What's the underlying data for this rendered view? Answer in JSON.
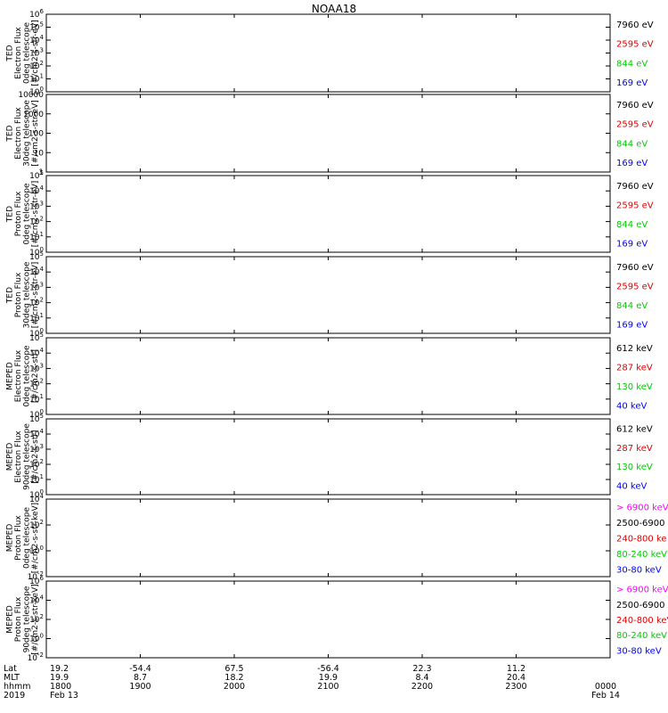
{
  "title": "NOAA18",
  "footer": {
    "row_labels": [
      "Lat",
      "MLT",
      "hhmm",
      "2019"
    ],
    "columns": [
      {
        "lat": "19.2",
        "mlt": "19.9",
        "hhmm": "1800",
        "date": "Feb 13"
      },
      {
        "lat": "-54.4",
        "mlt": "8.7",
        "hhmm": "1900",
        "date": ""
      },
      {
        "lat": "67.5",
        "mlt": "18.2",
        "hhmm": "2000",
        "date": ""
      },
      {
        "lat": "-56.4",
        "mlt": "19.9",
        "hhmm": "2100",
        "date": ""
      },
      {
        "lat": "22.3",
        "mlt": "8.4",
        "hhmm": "2200",
        "date": ""
      },
      {
        "lat": "11.2",
        "mlt": "20.4",
        "hhmm": "2300",
        "date": ""
      }
    ],
    "end": {
      "hhmm": "0000",
      "date": "Feb 14"
    }
  },
  "chart_data": [
    {
      "type": "scatter",
      "scale": "log",
      "ylim": [
        1,
        1000000
      ],
      "ylabel": [
        "TED",
        "Electron Flux",
        "0deg telescope",
        "[#/cm2-s-str-eV]"
      ],
      "ticks": [
        "10^0",
        "10^1",
        "10^2",
        "10^3",
        "10^4",
        "10^5",
        "10^6"
      ],
      "legend": [
        {
          "label": "7960 eV",
          "color": "#000000"
        },
        {
          "label": "2595 eV",
          "color": "#e00000"
        },
        {
          "label": "844 eV",
          "color": "#00cc00"
        },
        {
          "label": "169 eV",
          "color": "#0000ff"
        }
      ],
      "x": [
        "1800",
        "1900",
        "2000",
        "2100",
        "2200",
        "2300",
        "0000"
      ],
      "series": [
        {
          "color": "#000000",
          "values": []
        },
        {
          "color": "#e00000",
          "values": []
        },
        {
          "color": "#00cc00",
          "values": []
        },
        {
          "color": "#0000ff",
          "values": []
        }
      ]
    },
    {
      "type": "scatter",
      "scale": "log",
      "ylim": [
        1,
        10000
      ],
      "ylabel": [
        "TED",
        "Electron Flux",
        "30deg telescope",
        "[#/cm2-s-str-eV]"
      ],
      "ticks": [
        "1",
        "10",
        "100",
        "1000",
        "10000"
      ],
      "legend": [
        {
          "label": "7960 eV",
          "color": "#000000"
        },
        {
          "label": "2595 eV",
          "color": "#e00000"
        },
        {
          "label": "844 eV",
          "color": "#00cc00"
        },
        {
          "label": "169 eV",
          "color": "#0000ff"
        }
      ],
      "x": [
        "1800",
        "1900",
        "2000",
        "2100",
        "2200",
        "2300",
        "0000"
      ],
      "series": [
        {
          "color": "#000000",
          "values": []
        },
        {
          "color": "#e00000",
          "values": []
        },
        {
          "color": "#00cc00",
          "values": []
        },
        {
          "color": "#0000ff",
          "values": []
        }
      ]
    },
    {
      "type": "scatter",
      "scale": "log",
      "ylim": [
        1,
        100000
      ],
      "ylabel": [
        "TED",
        "Proton Flux",
        "0deg telescope",
        "[#/cm2-s-str-eV]"
      ],
      "ticks": [
        "10^0",
        "10^1",
        "10^2",
        "10^3",
        "10^4",
        "10^5"
      ],
      "legend": [
        {
          "label": "7960 eV",
          "color": "#000000"
        },
        {
          "label": "2595 eV",
          "color": "#e00000"
        },
        {
          "label": "844 eV",
          "color": "#00cc00"
        },
        {
          "label": "169 eV",
          "color": "#0000ff"
        }
      ],
      "x": [
        "1800",
        "1900",
        "2000",
        "2100",
        "2200",
        "2300",
        "0000"
      ],
      "series": [
        {
          "color": "#000000",
          "values": []
        },
        {
          "color": "#e00000",
          "values": []
        },
        {
          "color": "#00cc00",
          "values": []
        },
        {
          "color": "#0000ff",
          "values": []
        }
      ]
    },
    {
      "type": "scatter",
      "scale": "log",
      "ylim": [
        1,
        100000
      ],
      "ylabel": [
        "TED",
        "Proton Flux",
        "30deg telescope",
        "[#/cm2-s-str-eV]"
      ],
      "ticks": [
        "10^0",
        "10^1",
        "10^2",
        "10^3",
        "10^4",
        "10^5"
      ],
      "legend": [
        {
          "label": "7960 eV",
          "color": "#000000"
        },
        {
          "label": "2595 eV",
          "color": "#e00000"
        },
        {
          "label": "844 eV",
          "color": "#00cc00"
        },
        {
          "label": "169 eV",
          "color": "#0000ff"
        }
      ],
      "x": [
        "1800",
        "1900",
        "2000",
        "2100",
        "2200",
        "2300",
        "0000"
      ],
      "series": [
        {
          "color": "#000000",
          "values": []
        },
        {
          "color": "#e00000",
          "values": []
        },
        {
          "color": "#00cc00",
          "values": []
        },
        {
          "color": "#0000ff",
          "values": []
        }
      ]
    },
    {
      "type": "scatter",
      "scale": "log",
      "ylim": [
        1,
        100000
      ],
      "ylabel": [
        "MEPED",
        "Electron Flux",
        "0deg telescope",
        "[#/cm2-s-str]"
      ],
      "ticks": [
        "10^0",
        "10^1",
        "10^2",
        "10^3",
        "10^4",
        "10^5"
      ],
      "legend": [
        {
          "label": "612 keV",
          "color": "#000000"
        },
        {
          "label": "287 keV",
          "color": "#e00000"
        },
        {
          "label": "130 keV",
          "color": "#00cc00"
        },
        {
          "label": "40 keV",
          "color": "#0000ff"
        }
      ],
      "x": [
        "1800",
        "1900",
        "2000",
        "2100",
        "2200",
        "2300",
        "0000"
      ],
      "series": [
        {
          "color": "#000000",
          "values": []
        },
        {
          "color": "#e00000",
          "values": []
        },
        {
          "color": "#00cc00",
          "values": []
        },
        {
          "color": "#0000ff",
          "values": []
        }
      ]
    },
    {
      "type": "scatter",
      "scale": "log",
      "ylim": [
        1,
        100000
      ],
      "ylabel": [
        "MEPED",
        "Electron Flux",
        "90deg telescope",
        "[#/cm2-s-str]"
      ],
      "ticks": [
        "10^0",
        "10^1",
        "10^2",
        "10^3",
        "10^4",
        "10^5"
      ],
      "legend": [
        {
          "label": "612 keV",
          "color": "#000000"
        },
        {
          "label": "287 keV",
          "color": "#e00000"
        },
        {
          "label": "130 keV",
          "color": "#00cc00"
        },
        {
          "label": "40 keV",
          "color": "#0000ff"
        }
      ],
      "x": [
        "1800",
        "1900",
        "2000",
        "2100",
        "2200",
        "2300",
        "0000"
      ],
      "series": [
        {
          "color": "#000000",
          "values": []
        },
        {
          "color": "#e00000",
          "values": []
        },
        {
          "color": "#00cc00",
          "values": []
        },
        {
          "color": "#0000ff",
          "values": []
        }
      ]
    },
    {
      "type": "scatter",
      "scale": "log",
      "ylim": [
        0.01,
        100000
      ],
      "ylabel": [
        "MEPED",
        "Proton Flux",
        "0deg telescope",
        "[#/cm2-s-str-keV]"
      ],
      "ticks": [
        "10^-2",
        "10^0",
        "10^2",
        "10^4"
      ],
      "legend": [
        {
          "label": "> 6900 keV",
          "color": "#ff00ff"
        },
        {
          "label": "2500-6900",
          "color": "#000000"
        },
        {
          "label": "240-800 ke",
          "color": "#e00000"
        },
        {
          "label": "80-240 keV",
          "color": "#00cc00"
        },
        {
          "label": "30-80 keV",
          "color": "#0000ff"
        }
      ],
      "x": [
        "1800",
        "1900",
        "2000",
        "2100",
        "2200",
        "2300",
        "0000"
      ],
      "series": [
        {
          "color": "#ff00ff",
          "values": []
        },
        {
          "color": "#000000",
          "values": []
        },
        {
          "color": "#e00000",
          "values": []
        },
        {
          "color": "#00cc00",
          "values": []
        },
        {
          "color": "#0000ff",
          "values": []
        }
      ]
    },
    {
      "type": "scatter",
      "scale": "log",
      "ylim": [
        0.01,
        1000000
      ],
      "ylabel": [
        "MEPED",
        "Proton Flux",
        "90deg telescope",
        "[#/cm2-s-str-keV]"
      ],
      "ticks": [
        "10^-2",
        "10^0",
        "10^2",
        "10^4",
        "10^6"
      ],
      "legend": [
        {
          "label": "> 6900 keV",
          "color": "#ff00ff"
        },
        {
          "label": "2500-6900",
          "color": "#000000"
        },
        {
          "label": "240-800 keV",
          "color": "#e00000"
        },
        {
          "label": "80-240 keV",
          "color": "#00cc00"
        },
        {
          "label": "30-80 keV",
          "color": "#0000ff"
        }
      ],
      "x": [
        "1800",
        "1900",
        "2000",
        "2100",
        "2200",
        "2300",
        "0000"
      ],
      "series": [
        {
          "color": "#ff00ff",
          "values": []
        },
        {
          "color": "#000000",
          "values": []
        },
        {
          "color": "#e00000",
          "values": []
        },
        {
          "color": "#00cc00",
          "values": []
        },
        {
          "color": "#0000ff",
          "values": []
        }
      ]
    }
  ]
}
